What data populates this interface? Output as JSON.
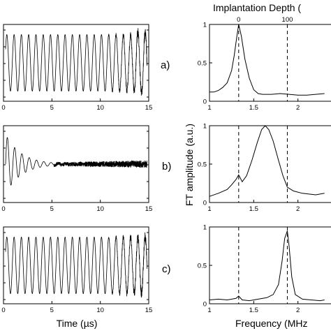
{
  "chart_data": [
    {
      "type": "line",
      "panel": "a)",
      "xlim": [
        0,
        15
      ],
      "x_ticks": [
        "0",
        "5",
        "10",
        "15"
      ],
      "signal": {
        "freq_cycles_per_us": 1.33,
        "envelope": "constant",
        "noise_grows_after_us": 10
      }
    },
    {
      "type": "line",
      "panel": "b)",
      "xlim": [
        0,
        15
      ],
      "x_ticks": [
        "0",
        "5",
        "10",
        "15"
      ],
      "signal": {
        "freq_cycles_per_us": 1.33,
        "envelope": "decaying",
        "noise_after_us": 5
      }
    },
    {
      "type": "line",
      "panel": "c)",
      "xlim": [
        0,
        15
      ],
      "x_ticks": [
        "0",
        "5",
        "10",
        "15"
      ],
      "xlabel": "Time (µs)",
      "signal": {
        "freq_cycles_per_us": 1.33,
        "envelope": "constant",
        "noise_grows_after_us": 10
      }
    },
    {
      "type": "line",
      "panel": "a)",
      "xlim": [
        1,
        2.5
      ],
      "ylim": [
        0,
        1
      ],
      "x_ticks": [
        "1",
        "1.5",
        "2"
      ],
      "y_ticks": [
        "0",
        "0.5",
        "1"
      ],
      "top_axis_label": "Implantation Depth (",
      "top_ticks": [
        {
          "x": 1.33,
          "label": "0"
        },
        {
          "x": 1.88,
          "label": "100"
        }
      ],
      "dashed_lines_x": [
        1.33,
        1.88
      ],
      "x": [
        1.0,
        1.05,
        1.1,
        1.15,
        1.2,
        1.25,
        1.28,
        1.31,
        1.33,
        1.36,
        1.4,
        1.45,
        1.5,
        1.55,
        1.6,
        1.7,
        1.8,
        1.9,
        2.0,
        2.1,
        2.2,
        2.3
      ],
      "y": [
        0.12,
        0.12,
        0.14,
        0.18,
        0.24,
        0.4,
        0.6,
        0.85,
        1.0,
        0.85,
        0.55,
        0.3,
        0.15,
        0.1,
        0.09,
        0.09,
        0.1,
        0.09,
        0.08,
        0.08,
        0.09,
        0.1
      ]
    },
    {
      "type": "line",
      "panel": "b)",
      "xlim": [
        1,
        2.5
      ],
      "ylim": [
        0,
        1
      ],
      "x_ticks": [
        "1",
        "1.5",
        "2"
      ],
      "y_ticks": [
        "0",
        "0.5",
        "1"
      ],
      "dashed_lines_x": [
        1.33,
        1.88
      ],
      "ylabel": "FT amplitude (a.u.)",
      "x": [
        1.0,
        1.1,
        1.2,
        1.25,
        1.3,
        1.33,
        1.37,
        1.42,
        1.48,
        1.54,
        1.59,
        1.63,
        1.67,
        1.72,
        1.78,
        1.83,
        1.88,
        1.95,
        2.05,
        2.2,
        2.3
      ],
      "y": [
        0.08,
        0.12,
        0.17,
        0.23,
        0.3,
        0.36,
        0.27,
        0.35,
        0.55,
        0.78,
        0.95,
        1.0,
        0.95,
        0.8,
        0.55,
        0.35,
        0.2,
        0.15,
        0.12,
        0.1,
        0.12
      ]
    },
    {
      "type": "line",
      "panel": "c)",
      "xlim": [
        1,
        2.5
      ],
      "ylim": [
        0,
        1
      ],
      "x_ticks": [
        "1",
        "1.5",
        "2"
      ],
      "y_ticks": [
        "0",
        "0.5",
        "1"
      ],
      "dashed_lines_x": [
        1.33,
        1.88
      ],
      "xlabel": "Frequency (MHz",
      "x": [
        1.0,
        1.1,
        1.2,
        1.3,
        1.33,
        1.37,
        1.45,
        1.55,
        1.65,
        1.72,
        1.78,
        1.82,
        1.85,
        1.88,
        1.9,
        1.93,
        1.97,
        2.05,
        2.15,
        2.25,
        2.3
      ],
      "y": [
        0.05,
        0.06,
        0.05,
        0.07,
        0.1,
        0.05,
        0.04,
        0.06,
        0.08,
        0.12,
        0.25,
        0.55,
        0.85,
        0.95,
        0.75,
        0.35,
        0.12,
        0.06,
        0.05,
        0.04,
        0.05
      ]
    }
  ]
}
